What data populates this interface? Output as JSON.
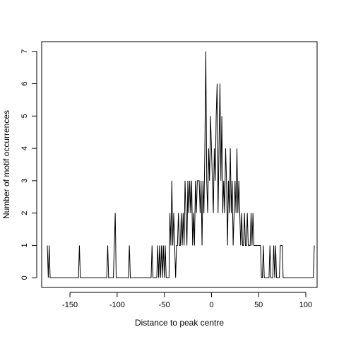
{
  "chart_data": {
    "type": "line",
    "title": "",
    "xlabel": "Distance to peak centre",
    "ylabel": "Number of motif occurrences",
    "xlim": [
      -180,
      112
    ],
    "ylim": [
      -0.3,
      7.3
    ],
    "x_ticks": [
      -150,
      -100,
      -50,
      0,
      50,
      100
    ],
    "x_tick_labels": [
      "-150",
      "-100",
      "-50",
      "0",
      "50",
      "100"
    ],
    "y_ticks": [
      0,
      1,
      2,
      3,
      4,
      5,
      6,
      7
    ],
    "y_tick_labels": [
      "0",
      "1",
      "2",
      "3",
      "4",
      "5",
      "6",
      "7"
    ],
    "grid": false,
    "legend": "none",
    "line_color": "#000000",
    "series": [
      {
        "x": [
          -174,
          -173,
          -172,
          -140,
          -110,
          -103,
          -102,
          -101,
          -87,
          -63,
          -57,
          -55,
          -53,
          -51,
          -49,
          -44,
          -43,
          -42,
          -41,
          -40,
          -39,
          -38,
          -37,
          -36,
          -35,
          -34,
          -33,
          -32,
          -31,
          -30,
          -29,
          -28,
          -27,
          -26,
          -25,
          -24,
          -23,
          -22,
          -21,
          -20,
          -19,
          -18,
          -17,
          -16,
          -15,
          -14,
          -13,
          -12,
          -11,
          -10,
          -9,
          -8,
          -7,
          -6,
          -5,
          -4,
          -3,
          -2,
          -1,
          0,
          1,
          2,
          3,
          4,
          5,
          6,
          7,
          8,
          9,
          10,
          11,
          12,
          13,
          14,
          15,
          16,
          17,
          18,
          19,
          20,
          21,
          22,
          23,
          24,
          25,
          26,
          27,
          28,
          29,
          30,
          31,
          32,
          33,
          34,
          35,
          36,
          37,
          38,
          39,
          40,
          41,
          42,
          43,
          44,
          45,
          46,
          47,
          48,
          49,
          50,
          51,
          52,
          55,
          62,
          66,
          68,
          73,
          74,
          75,
          109
        ],
        "y": [
          1,
          0,
          1,
          1,
          1,
          1,
          2,
          0,
          1,
          1,
          1,
          1,
          1,
          1,
          1,
          2,
          1,
          3,
          1,
          2,
          1,
          0,
          1,
          1,
          2,
          1,
          1,
          2,
          1,
          2,
          1,
          3,
          2,
          1,
          3,
          2,
          3,
          2,
          3,
          1,
          2,
          1,
          3,
          2,
          3,
          3,
          3,
          2,
          3,
          1,
          3,
          2,
          4,
          7,
          3,
          2,
          4,
          3,
          5,
          4,
          3,
          2,
          4,
          3,
          5,
          6,
          2,
          4,
          6,
          3,
          5,
          2,
          3,
          2,
          4,
          3,
          1,
          3,
          2,
          4,
          2,
          3,
          1,
          2,
          3,
          2,
          4,
          2,
          3,
          2,
          1,
          2,
          1,
          1,
          2,
          1,
          1,
          2,
          1,
          1,
          1,
          2,
          1,
          2,
          1,
          1,
          1,
          1,
          1,
          1,
          1,
          1,
          1,
          1,
          1,
          1,
          1,
          1,
          1,
          1
        ]
      }
    ]
  }
}
